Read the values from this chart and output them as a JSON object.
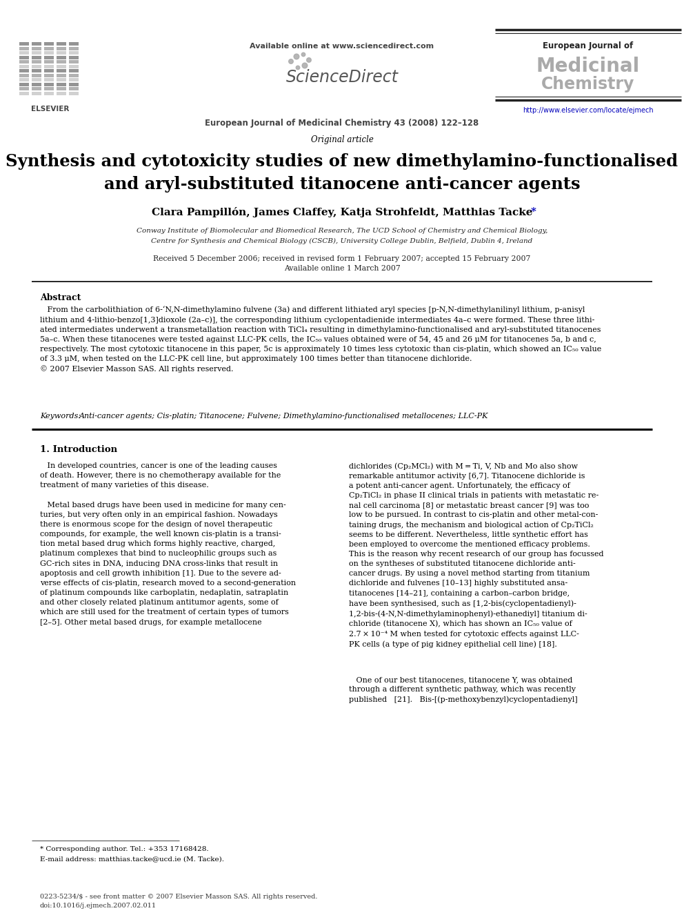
{
  "title_line1": "Synthesis and cytotoxicity studies of new dimethylamino-functionalised",
  "title_line2": "and aryl-substituted titanocene anti-cancer agents",
  "article_type": "Original article",
  "authors_main": "Clara Pampillón, James Claffey, Katja Strohfeldt, Matthias Tacke",
  "affiliation1": "Conway Institute of Biomolecular and Biomedical Research, The UCD School of Chemistry and Chemical Biology,",
  "affiliation2": "Centre for Synthesis and Chemical Biology (CSCB), University College Dublin, Belfield, Dublin 4, Ireland",
  "received": "Received 5 December 2006; received in revised form 1 February 2007; accepted 15 February 2007",
  "available": "Available online 1 March 2007",
  "journal_header": "European Journal of Medicinal Chemistry 43 (2008) 122–128",
  "sciencedirect_text": "Available online at www.sciencedirect.com",
  "journal_name_line1": "European Journal of",
  "journal_name_line2": "Medicinal",
  "journal_name_line3": "Chemistry",
  "journal_url": "http://www.elsevier.com/locate/ejmech",
  "elsevier_text": "ELSEVIER",
  "abstract_title": "Abstract",
  "keywords_text": "Anti-cancer agents; Cis-platin; Titanocene; Fulvene; Dimethylamino-functionalised metallocenes; LLC-PK",
  "intro_title": "1. Introduction",
  "footnote1": "* Corresponding author. Tel.: +353 17168428.",
  "footnote2": "E-mail address: matthias.tacke@ucd.ie (M. Tacke).",
  "footer_issn": "0223-5234/$ - see front matter © 2007 Elsevier Masson SAS. All rights reserved.",
  "footer_doi": "doi:10.1016/j.ejmech.2007.02.011",
  "bg_color": "#ffffff",
  "text_color": "#000000",
  "link_color": "#0000bb",
  "gray_color": "#888888",
  "dark_gray": "#444444"
}
